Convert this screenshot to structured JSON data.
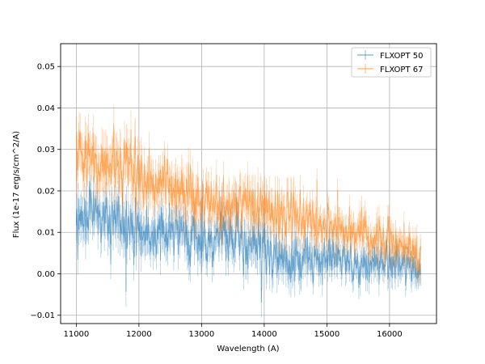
{
  "chart_data": {
    "type": "line",
    "title": "",
    "xlabel": "Wavelength (A)",
    "ylabel": "Flux (1e-17 erg/s/cm^2/A)",
    "xlim": [
      10750,
      16750
    ],
    "ylim": [
      -0.012,
      0.0555
    ],
    "x_ticks": [
      11000,
      12000,
      13000,
      14000,
      15000,
      16000
    ],
    "y_ticks": [
      -0.01,
      0.0,
      0.01,
      0.02,
      0.03,
      0.04,
      0.05
    ],
    "x_tick_labels": [
      "11000",
      "12000",
      "13000",
      "14000",
      "15000",
      "16000"
    ],
    "y_tick_labels": [
      "−0.01",
      "0.00",
      "0.01",
      "0.02",
      "0.03",
      "0.04",
      "0.05"
    ],
    "grid": true,
    "legend_position": "top-right",
    "x": [
      11000,
      11250,
      11500,
      11750,
      12000,
      12250,
      12500,
      12750,
      13000,
      13250,
      13500,
      13750,
      14000,
      14250,
      14500,
      14750,
      15000,
      15250,
      15500,
      15750,
      16000,
      16250,
      16500
    ],
    "series": [
      {
        "name": "FLXOPT 50",
        "color": "#1f77b4",
        "values": [
          0.012,
          0.016,
          0.013,
          0.012,
          0.011,
          0.01,
          0.01,
          0.009,
          0.008,
          0.009,
          0.008,
          0.007,
          0.006,
          0.004,
          0.003,
          0.004,
          0.004,
          0.003,
          0.002,
          0.003,
          0.003,
          0.002,
          0.001
        ],
        "error": [
          0.004,
          0.004,
          0.004,
          0.004,
          0.004,
          0.004,
          0.004,
          0.004,
          0.004,
          0.004,
          0.004,
          0.004,
          0.004,
          0.004,
          0.004,
          0.003,
          0.003,
          0.003,
          0.003,
          0.003,
          0.003,
          0.003,
          0.003
        ]
      },
      {
        "name": "FLXOPT 67",
        "color": "#ff7f0e",
        "values": [
          0.03,
          0.028,
          0.027,
          0.026,
          0.024,
          0.022,
          0.021,
          0.019,
          0.018,
          0.017,
          0.017,
          0.016,
          0.016,
          0.015,
          0.014,
          0.013,
          0.012,
          0.011,
          0.01,
          0.009,
          0.008,
          0.007,
          0.004
        ],
        "error": [
          0.005,
          0.005,
          0.005,
          0.005,
          0.005,
          0.004,
          0.004,
          0.004,
          0.004,
          0.004,
          0.004,
          0.004,
          0.004,
          0.004,
          0.004,
          0.003,
          0.003,
          0.003,
          0.003,
          0.003,
          0.003,
          0.003,
          0.003
        ]
      }
    ]
  }
}
